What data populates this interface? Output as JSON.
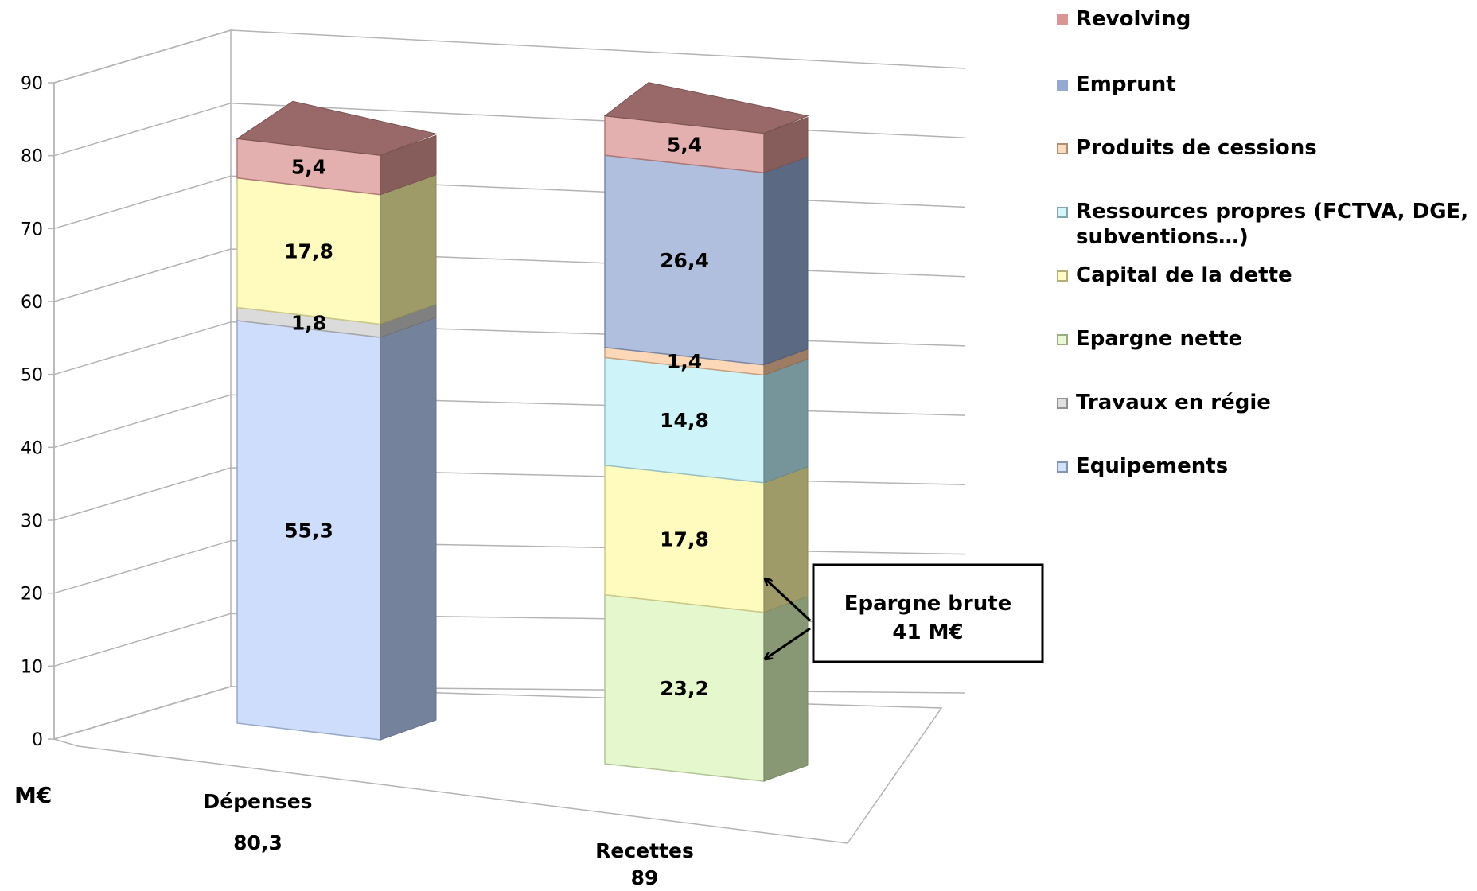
{
  "chart_data": {
    "type": "bar",
    "stacked": true,
    "three_d": true,
    "unit": "M€",
    "ylim": [
      0,
      90
    ],
    "yticks": [
      "0",
      "10",
      "20",
      "30",
      "40",
      "50",
      "60",
      "70",
      "80",
      "90"
    ],
    "grid": true,
    "legend_position": "right",
    "categories": [
      {
        "name": "Dépenses",
        "total": "80,3"
      },
      {
        "name": "Recettes",
        "total": "89"
      }
    ],
    "series": [
      {
        "name": "Revolving",
        "color": "#d99694",
        "values": [
          5.4,
          5.4
        ],
        "labels": [
          "5,4",
          "5,4"
        ]
      },
      {
        "name": "Emprunt",
        "color": "#95a9d1",
        "values": [
          0,
          26.4
        ],
        "labels": [
          "",
          "26,4"
        ]
      },
      {
        "name": "Produits de cessions",
        "color": "#fbc9a0",
        "values": [
          0,
          1.4
        ],
        "labels": [
          "",
          "1,4"
        ]
      },
      {
        "name": "Ressources propres (FCTVA, DGE, subventions…)",
        "color": "#bdf0f8",
        "values": [
          0,
          14.8
        ],
        "labels": [
          "",
          "14,8"
        ]
      },
      {
        "name": "Capital de la dette",
        "color": "#fffaa8",
        "values": [
          17.8,
          17.8
        ],
        "labels": [
          "17,8",
          "17,8"
        ]
      },
      {
        "name": "Epargne nette",
        "color": "#dcf5bc",
        "values": [
          0,
          23.2
        ],
        "labels": [
          "",
          "23,2"
        ]
      },
      {
        "name": "Travaux en régie",
        "color": "#cfcfcf",
        "values": [
          1.8,
          0
        ],
        "labels": [
          "1,8",
          ""
        ]
      },
      {
        "name": "Equipements",
        "color": "#bcd2fa",
        "values": [
          55.3,
          0
        ],
        "labels": [
          "55,3",
          ""
        ]
      }
    ],
    "annotations": [
      {
        "text_lines": [
          "Epargne brute",
          "41 M€"
        ]
      }
    ]
  }
}
